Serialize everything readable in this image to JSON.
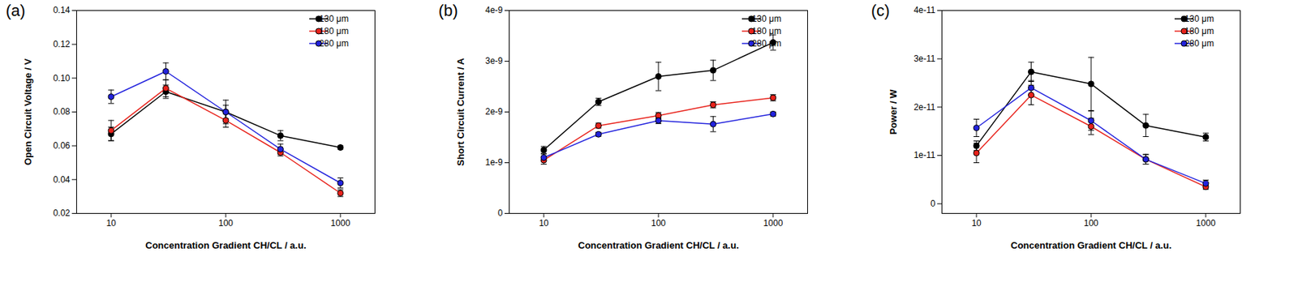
{
  "chart_data": [
    {
      "type": "line",
      "title": "(a)",
      "x_label": "Concentration Gradient CH/CL / a.u.",
      "y_label": "Open Circuit Voltage / V",
      "x": [
        10,
        30,
        100,
        300,
        1000
      ],
      "xlim": [
        5,
        2000
      ],
      "xticks": [
        10,
        100,
        1000
      ],
      "ylim": [
        0.02,
        0.14
      ],
      "yticks": [
        0.02,
        0.04,
        0.06,
        0.08,
        {
          "value": 0.1,
          "label": "0.10"
        },
        0.12,
        0.14
      ],
      "log": "x",
      "grid": false,
      "legend": "top-right",
      "series": [
        {
          "name": "130 μm",
          "color": "#000000",
          "marker": "circle",
          "values": [
            0.067,
            0.092,
            0.08,
            0.066,
            0.059
          ],
          "errors": [
            0.004,
            0.004,
            0.004,
            0.003,
            0.001
          ]
        },
        {
          "name": "180 μm",
          "color": "#e8221b",
          "marker": "circle",
          "values": [
            0.069,
            0.094,
            0.075,
            0.056,
            0.032
          ],
          "errors": [
            0.006,
            0.005,
            0.004,
            0.002,
            0.002
          ]
        },
        {
          "name": "280 μm",
          "color": "#2222dd",
          "marker": "circle",
          "values": [
            0.089,
            0.104,
            0.08,
            0.058,
            0.038
          ],
          "errors": [
            0.004,
            0.005,
            0.007,
            0.003,
            0.003
          ]
        }
      ]
    },
    {
      "type": "line",
      "title": "(b)",
      "x_label": "Concentration Gradient CH/CL / a.u.",
      "y_label": "Short Circuit Current / A",
      "x": [
        10,
        30,
        100,
        300,
        1000
      ],
      "xlim": [
        5,
        2000
      ],
      "xticks": [
        10,
        100,
        1000
      ],
      "ylim": [
        0,
        4e-09
      ],
      "yticks": [
        0,
        {
          "value": 1e-09,
          "label": "1e-9"
        },
        {
          "value": 2e-09,
          "label": "2e-9"
        },
        {
          "value": 3e-09,
          "label": "3e-9"
        },
        {
          "value": 4e-09,
          "label": "4e-9"
        }
      ],
      "log": "x",
      "grid": false,
      "legend": "top-right",
      "series": [
        {
          "name": "130 μm",
          "color": "#000000",
          "marker": "circle",
          "values": [
            1.25e-09,
            2.2e-09,
            2.7e-09,
            2.82e-09,
            3.37e-09
          ],
          "errors": [
            7e-11,
            7e-11,
            2.8e-10,
            2e-10,
            1.5e-10
          ]
        },
        {
          "name": "180 μm",
          "color": "#e8221b",
          "marker": "circle",
          "values": [
            1.05e-09,
            1.73e-09,
            1.93e-09,
            2.14e-09,
            2.28e-09
          ],
          "errors": [
            8e-11,
            5e-11,
            6e-11,
            6e-11,
            6e-11
          ]
        },
        {
          "name": "280 μm",
          "color": "#2222dd",
          "marker": "circle",
          "values": [
            1.1e-09,
            1.56e-09,
            1.83e-09,
            1.76e-09,
            1.96e-09
          ],
          "errors": [
            7e-11,
            4e-11,
            6e-11,
            1.5e-10,
            4e-11
          ]
        }
      ]
    },
    {
      "type": "line",
      "title": "(c)",
      "x_label": "Concentration Gradient CH/CL / a.u.",
      "y_label": "Power / W",
      "x": [
        10,
        30,
        100,
        300,
        1000
      ],
      "xlim": [
        5,
        2000
      ],
      "xticks": [
        10,
        100,
        1000
      ],
      "ylim": [
        -2e-12,
        4e-11
      ],
      "yticks": [
        0,
        {
          "value": 1e-11,
          "label": "1e-11"
        },
        {
          "value": 2e-11,
          "label": "2e-11"
        },
        {
          "value": 3e-11,
          "label": "3e-11"
        },
        {
          "value": 4e-11,
          "label": "4e-11"
        }
      ],
      "log": "x",
      "grid": false,
      "legend": "top-right",
      "series": [
        {
          "name": "130 μm",
          "color": "#000000",
          "marker": "circle",
          "values": [
            1.2e-11,
            2.73e-11,
            2.48e-11,
            1.62e-11,
            1.38e-11
          ],
          "errors": [
            1e-12,
            2e-12,
            5.5e-12,
            2.3e-12,
            8e-13
          ]
        },
        {
          "name": "180 μm",
          "color": "#e8221b",
          "marker": "circle",
          "values": [
            1.05e-11,
            2.25e-11,
            1.6e-11,
            9.2e-12,
            3.5e-12
          ],
          "errors": [
            2e-12,
            2e-12,
            1.7e-12,
            1e-12,
            5e-13
          ]
        },
        {
          "name": "280 μm",
          "color": "#2222dd",
          "marker": "circle",
          "values": [
            1.57e-11,
            2.4e-11,
            1.72e-11,
            9.2e-12,
            4.2e-12
          ],
          "errors": [
            1.8e-12,
            1.5e-12,
            2e-12,
            1e-12,
            7e-13
          ]
        }
      ]
    }
  ]
}
